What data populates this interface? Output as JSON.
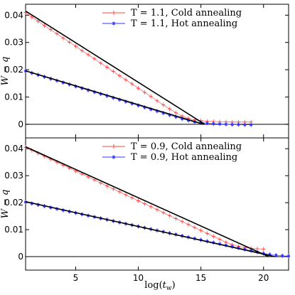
{
  "chart_data": [
    {
      "type": "scatter",
      "title": "",
      "xlabel": "",
      "ylabel": "W − q",
      "xlim": [
        1,
        22
      ],
      "ylim": [
        -0.005,
        0.044
      ],
      "yticks": [
        0,
        0.01,
        0.02,
        0.03,
        0.04
      ],
      "ytick_labels": [
        "0",
        "0.01",
        "0.02",
        "0.03",
        "0.04"
      ],
      "xticks": [
        5,
        10,
        15,
        20
      ],
      "xtick_labels": [],
      "legend_position": "top-center",
      "series": [
        {
          "name": "T = 1.1, Cold annealing",
          "color": "#ff4444",
          "marker": "plus",
          "x": [
            1.0,
            1.5,
            2.0,
            2.5,
            3.0,
            3.5,
            4.0,
            4.5,
            5.0,
            5.5,
            6.0,
            6.5,
            7.0,
            7.5,
            8.0,
            8.5,
            9.0,
            9.5,
            10.0,
            10.5,
            11.0,
            11.5,
            12.0,
            12.5,
            13.0,
            13.5,
            14.0,
            14.5,
            15.0,
            15.5,
            16.0,
            16.5,
            17.0,
            17.5,
            18.0,
            18.5,
            19.0
          ],
          "y": [
            0.041,
            0.0393,
            0.0378,
            0.0362,
            0.0347,
            0.0332,
            0.0316,
            0.0301,
            0.0286,
            0.027,
            0.0255,
            0.024,
            0.0224,
            0.0209,
            0.0194,
            0.0178,
            0.0163,
            0.0148,
            0.0132,
            0.0117,
            0.0102,
            0.0086,
            0.0071,
            0.0056,
            0.0042,
            0.003,
            0.0022,
            0.0016,
            0.0013,
            0.0011,
            0.001,
            0.0009,
            0.0009,
            0.0008,
            0.0008,
            0.0008,
            0.0008
          ]
        },
        {
          "name": "T = 1.1, Hot annealing",
          "color": "#3333ff",
          "marker": "star",
          "x": [
            1.0,
            1.5,
            2.0,
            2.5,
            3.0,
            3.5,
            4.0,
            4.5,
            5.0,
            5.5,
            6.0,
            6.5,
            7.0,
            7.5,
            8.0,
            8.5,
            9.0,
            9.5,
            10.0,
            10.5,
            11.0,
            11.5,
            12.0,
            12.5,
            13.0,
            13.5,
            14.0,
            14.5,
            15.0,
            15.5,
            16.0,
            16.5,
            17.0,
            17.5,
            18.0,
            18.5,
            19.0
          ],
          "y": [
            0.0195,
            0.0188,
            0.0181,
            0.0174,
            0.0167,
            0.016,
            0.0153,
            0.0146,
            0.0139,
            0.0132,
            0.0125,
            0.0118,
            0.0111,
            0.0104,
            0.0097,
            0.009,
            0.0083,
            0.0076,
            0.0069,
            0.0062,
            0.0055,
            0.0048,
            0.0041,
            0.0034,
            0.0027,
            0.002,
            0.0014,
            0.0009,
            0.0006,
            0.0004,
            0.0002,
            0.0001,
            0.0,
            -0.0001,
            -0.0001,
            -0.0002,
            -0.0002
          ]
        },
        {
          "name": "",
          "color": "#000000",
          "marker": "none",
          "x": [
            1,
            15.3
          ],
          "y": [
            0.0415,
            0.0
          ]
        },
        {
          "name": "",
          "color": "#000000",
          "marker": "none",
          "x": [
            1,
            15.2
          ],
          "y": [
            0.0196,
            0.0
          ]
        }
      ]
    },
    {
      "type": "scatter",
      "title": "",
      "xlabel": "log(t_w)",
      "ylabel": "W − q",
      "xlim": [
        1,
        22
      ],
      "ylim": [
        -0.005,
        0.044
      ],
      "yticks": [
        0,
        0.01,
        0.02,
        0.03,
        0.04
      ],
      "ytick_labels": [
        "0",
        "0.01",
        "0.02",
        "0.03",
        "0.04"
      ],
      "xticks": [
        5,
        10,
        15,
        20
      ],
      "xtick_labels": [
        "5",
        "10",
        "15",
        "20"
      ],
      "legend_position": "top-center",
      "series": [
        {
          "name": "T = 0.9, Cold annealing",
          "color": "#ff4444",
          "marker": "plus",
          "x": [
            1.0,
            1.5,
            2.0,
            2.5,
            3.0,
            3.5,
            4.0,
            4.5,
            5.0,
            5.5,
            6.0,
            6.5,
            7.0,
            7.5,
            8.0,
            8.5,
            9.0,
            9.5,
            10.0,
            10.5,
            11.0,
            11.5,
            12.0,
            12.5,
            13.0,
            13.5,
            14.0,
            14.5,
            15.0,
            15.5,
            16.0,
            16.5,
            17.0,
            17.5,
            18.0,
            18.5,
            19.0,
            19.5,
            20.0
          ],
          "y": [
            0.0405,
            0.0394,
            0.0383,
            0.0372,
            0.0361,
            0.035,
            0.0339,
            0.0328,
            0.0317,
            0.0306,
            0.0295,
            0.0284,
            0.0273,
            0.0262,
            0.0251,
            0.024,
            0.0229,
            0.0218,
            0.0207,
            0.0196,
            0.0185,
            0.0174,
            0.0163,
            0.0152,
            0.0141,
            0.013,
            0.0119,
            0.0108,
            0.0097,
            0.0086,
            0.0075,
            0.0064,
            0.0053,
            0.0044,
            0.0038,
            0.0034,
            0.0031,
            0.0029,
            0.0028
          ]
        },
        {
          "name": "T = 0.9, Hot annealing",
          "color": "#3333ff",
          "marker": "star",
          "x": [
            1.0,
            1.5,
            2.0,
            2.5,
            3.0,
            3.5,
            4.0,
            4.5,
            5.0,
            5.5,
            6.0,
            6.5,
            7.0,
            7.5,
            8.0,
            8.5,
            9.0,
            9.5,
            10.0,
            10.5,
            11.0,
            11.5,
            12.0,
            12.5,
            13.0,
            13.5,
            14.0,
            14.5,
            15.0,
            15.5,
            16.0,
            16.5,
            17.0,
            17.5,
            18.0,
            18.5,
            19.0,
            19.5,
            20.0,
            20.5,
            21.0,
            21.5,
            22.0
          ],
          "y": [
            0.0202,
            0.0197,
            0.0192,
            0.0187,
            0.0182,
            0.0177,
            0.0172,
            0.0167,
            0.0162,
            0.0157,
            0.0152,
            0.0147,
            0.0142,
            0.0137,
            0.0132,
            0.0127,
            0.0122,
            0.0117,
            0.0112,
            0.0107,
            0.0102,
            0.0097,
            0.0092,
            0.0087,
            0.0082,
            0.0077,
            0.0072,
            0.0067,
            0.0062,
            0.0057,
            0.0052,
            0.0047,
            0.0042,
            0.0037,
            0.0032,
            0.0027,
            0.0022,
            0.0017,
            0.0012,
            0.0008,
            0.0005,
            0.0003,
            0.0002
          ]
        },
        {
          "name": "",
          "color": "#000000",
          "marker": "none",
          "x": [
            1,
            20.4
          ],
          "y": [
            0.0407,
            0.0
          ]
        },
        {
          "name": "",
          "color": "#000000",
          "marker": "none",
          "x": [
            1,
            20.9
          ],
          "y": [
            0.0204,
            0.0
          ]
        }
      ]
    }
  ]
}
